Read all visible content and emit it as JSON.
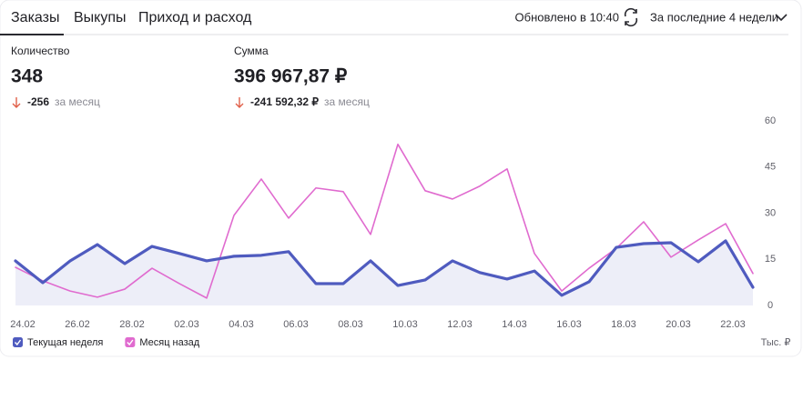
{
  "tabs": [
    "Заказы",
    "Выкупы",
    "Приход и расход"
  ],
  "header": {
    "updated": "Обновлено в 10:40",
    "period": "За последние 4 недели"
  },
  "metrics": [
    {
      "label": "Количество",
      "value": "348",
      "delta": "-256",
      "delta_period": "за месяц"
    },
    {
      "label": "Сумма",
      "value": "396 967,87 ₽",
      "delta": "-241 592,32 ₽",
      "delta_period": "за месяц"
    }
  ],
  "chart_data": {
    "type": "line",
    "categories": [
      "24.02",
      null,
      "26.02",
      null,
      "28.02",
      null,
      "02.03",
      null,
      "04.03",
      null,
      "06.03",
      null,
      "08.03",
      null,
      "10.03",
      null,
      "12.03",
      null,
      "14.03",
      null,
      "16.03",
      null,
      "18.03",
      null,
      "20.03",
      null,
      "22.03",
      null
    ],
    "series": [
      {
        "name": "Текущая неделя",
        "color": "#4f5bbf",
        "fill": true,
        "values": [
          14.5,
          7.4,
          14.5,
          19.8,
          13.6,
          19.2,
          16.9,
          14.5,
          16,
          16.3,
          17.5,
          7.1,
          7.1,
          14.5,
          6.5,
          8.3,
          14.5,
          10.7,
          8.6,
          11.2,
          3.3,
          7.7,
          18.9,
          20.1,
          20.4,
          14.2,
          21,
          5.9
        ]
      },
      {
        "name": "Месяц назад",
        "color": "#e06bcf",
        "fill": false,
        "values": [
          12.4,
          8,
          4.7,
          2.7,
          5.3,
          12.1,
          7.1,
          2.4,
          29.3,
          41.1,
          28.4,
          38.2,
          37,
          23.1,
          52.4,
          37.3,
          34.6,
          38.8,
          44.4,
          16.9,
          4.7,
          12.1,
          18.6,
          27.2,
          15.7,
          21.3,
          26.6,
          10.4
        ]
      }
    ],
    "ylim": [
      0,
      60
    ],
    "yticks": [
      0,
      15,
      30,
      45,
      60
    ],
    "y_unit": "Тыс. ₽",
    "grid": false
  }
}
